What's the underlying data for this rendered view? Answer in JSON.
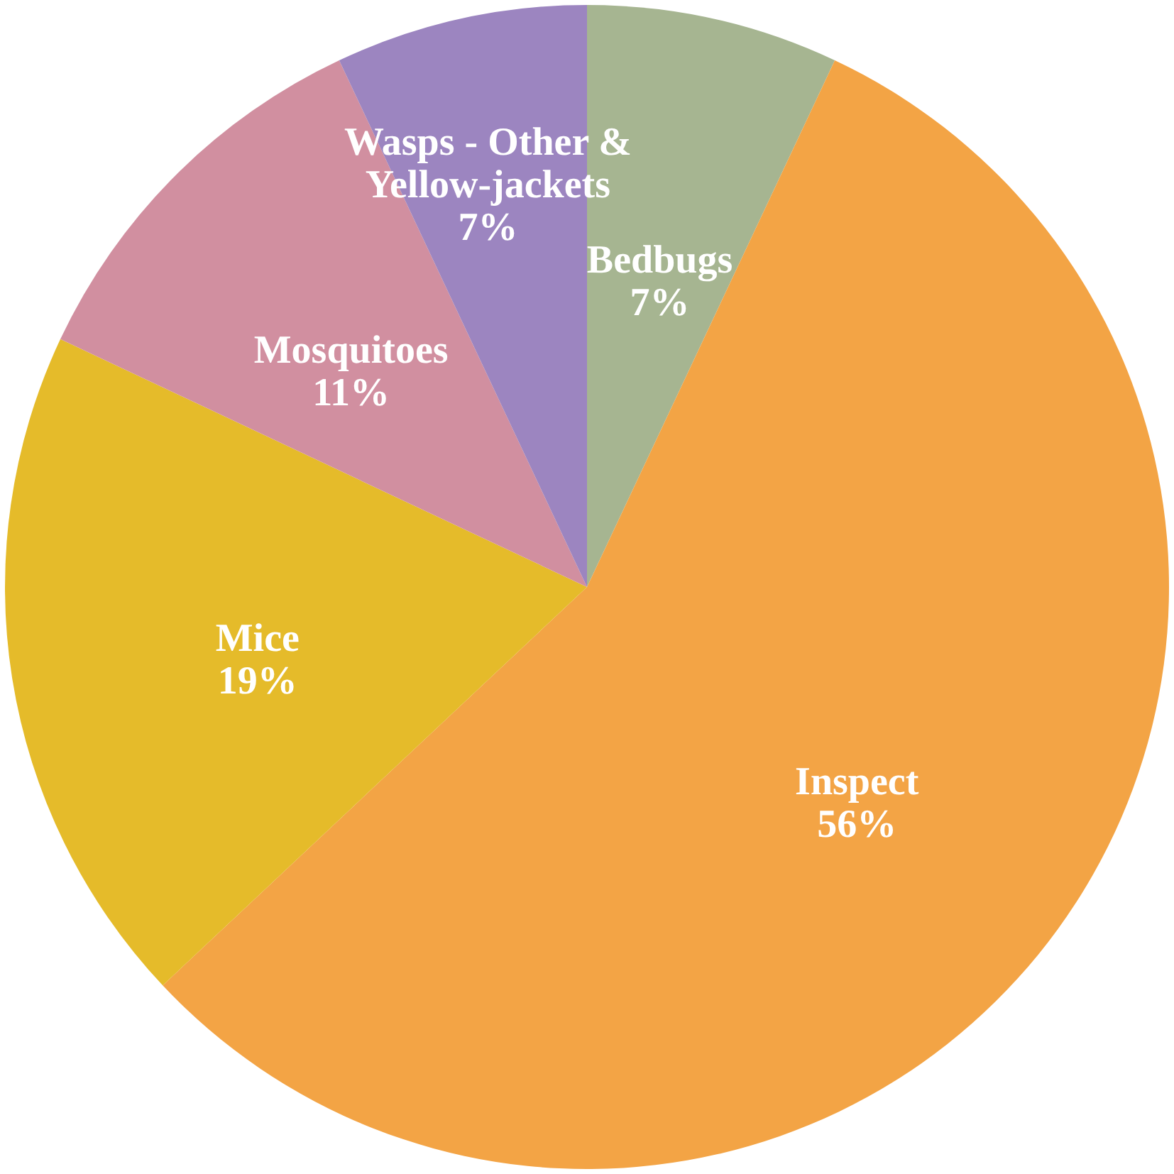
{
  "chart_data": {
    "type": "pie",
    "categories": [
      "Bedbugs",
      "Inspect",
      "Mice",
      "Mosquitoes",
      "Wasps - Other & Yellow-jackets"
    ],
    "values": [
      7,
      56,
      19,
      11,
      7
    ],
    "value_labels": [
      "7%",
      "56%",
      "19%",
      "11%",
      "7%"
    ],
    "colors": [
      "#a6b591",
      "#f3a445",
      "#e5bb2a",
      "#d18fa0",
      "#9c85c0"
    ],
    "legend": false
  }
}
